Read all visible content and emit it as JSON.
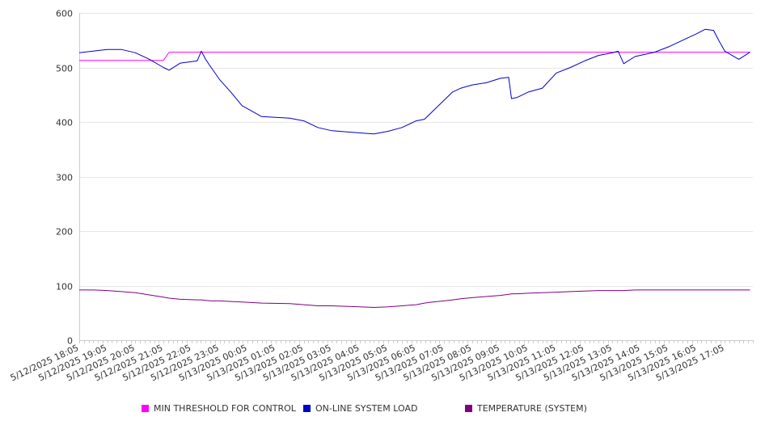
{
  "chart_data": {
    "type": "line",
    "title": "",
    "xlabel": "",
    "ylabel": "",
    "ylim": [
      0,
      600
    ],
    "yticks": [
      0,
      100,
      200,
      300,
      400,
      500,
      600
    ],
    "grid": true,
    "legend_position": "bottom",
    "x_tick_labels": [
      "5/12/2025 18:05",
      "5/12/2025 19:05",
      "5/12/2025 20:05",
      "5/12/2025 21:05",
      "5/12/2025 22:05",
      "5/12/2025 23:05",
      "5/13/2025 00:05",
      "5/13/2025 01:05",
      "5/13/2025 02:05",
      "5/13/2025 03:05",
      "5/13/2025 04:05",
      "5/13/2025 05:05",
      "5/13/2025 06:05",
      "5/13/2025 07:05",
      "5/13/2025 08:05",
      "5/13/2025 09:05",
      "5/13/2025 10:05",
      "5/13/2025 11:05",
      "5/13/2025 12:05",
      "5/13/2025 13:05",
      "5/13/2025 14:05",
      "5/13/2025 15:05",
      "5/13/2025 16:05",
      "5/13/2025 17:05"
    ],
    "x_hours": [
      0,
      0.5,
      1,
      1.5,
      2,
      2.5,
      3,
      3.2,
      3.6,
      4.2,
      4.35,
      4.5,
      4.7,
      5,
      5.4,
      5.8,
      6.5,
      7.5,
      8,
      8.5,
      9,
      9.5,
      10,
      10.5,
      11,
      11.5,
      12,
      12.3,
      12.6,
      13,
      13.3,
      13.6,
      14,
      14.5,
      15,
      15.3,
      15.4,
      15.6,
      16,
      16.5,
      17,
      17.5,
      18,
      18.5,
      19,
      19.2,
      19.4,
      19.8,
      20.5,
      21,
      21.5,
      22,
      22.3,
      22.6,
      22.8,
      23,
      23.5,
      23.9
    ],
    "series": [
      {
        "name": "MIN THRESHOLD FOR CONTROL",
        "color": "#ff00ff",
        "values": [
          513,
          513,
          513,
          513,
          513,
          513,
          513,
          528,
          528,
          528,
          528,
          528,
          528,
          528,
          528,
          528,
          528,
          528,
          528,
          528,
          528,
          528,
          528,
          528,
          528,
          528,
          528,
          528,
          528,
          528,
          528,
          528,
          528,
          528,
          528,
          528,
          528,
          528,
          528,
          528,
          528,
          528,
          528,
          528,
          528,
          528,
          528,
          528,
          528,
          528,
          528,
          528,
          528,
          528,
          528,
          528,
          528,
          528
        ]
      },
      {
        "name": "ON-LINE SYSTEM LOAD",
        "color": "#0000cc",
        "values": [
          527,
          530,
          533,
          533,
          527,
          515,
          500,
          495,
          508,
          512,
          530,
          515,
          500,
          478,
          455,
          430,
          410,
          407,
          402,
          390,
          384,
          382,
          380,
          378,
          383,
          390,
          402,
          405,
          420,
          440,
          455,
          462,
          468,
          472,
          480,
          482,
          443,
          445,
          455,
          462,
          490,
          500,
          512,
          522,
          527,
          530,
          507,
          520,
          528,
          538,
          550,
          562,
          570,
          568,
          548,
          530,
          515,
          528
        ]
      },
      {
        "name": "TEMPERATURE (SYSTEM)",
        "color": "#800080",
        "values": [
          92,
          92,
          91,
          89,
          87,
          83,
          79,
          77,
          75,
          74,
          74,
          73,
          72,
          72,
          71,
          70,
          68,
          67,
          65,
          63,
          63,
          62,
          61,
          60,
          61,
          63,
          65,
          68,
          70,
          72,
          74,
          76,
          78,
          80,
          82,
          84,
          85,
          85,
          86,
          87,
          88,
          89,
          90,
          91,
          91,
          91,
          91,
          92,
          92,
          92,
          92,
          92,
          92,
          92,
          92,
          92,
          92,
          92
        ]
      }
    ]
  }
}
